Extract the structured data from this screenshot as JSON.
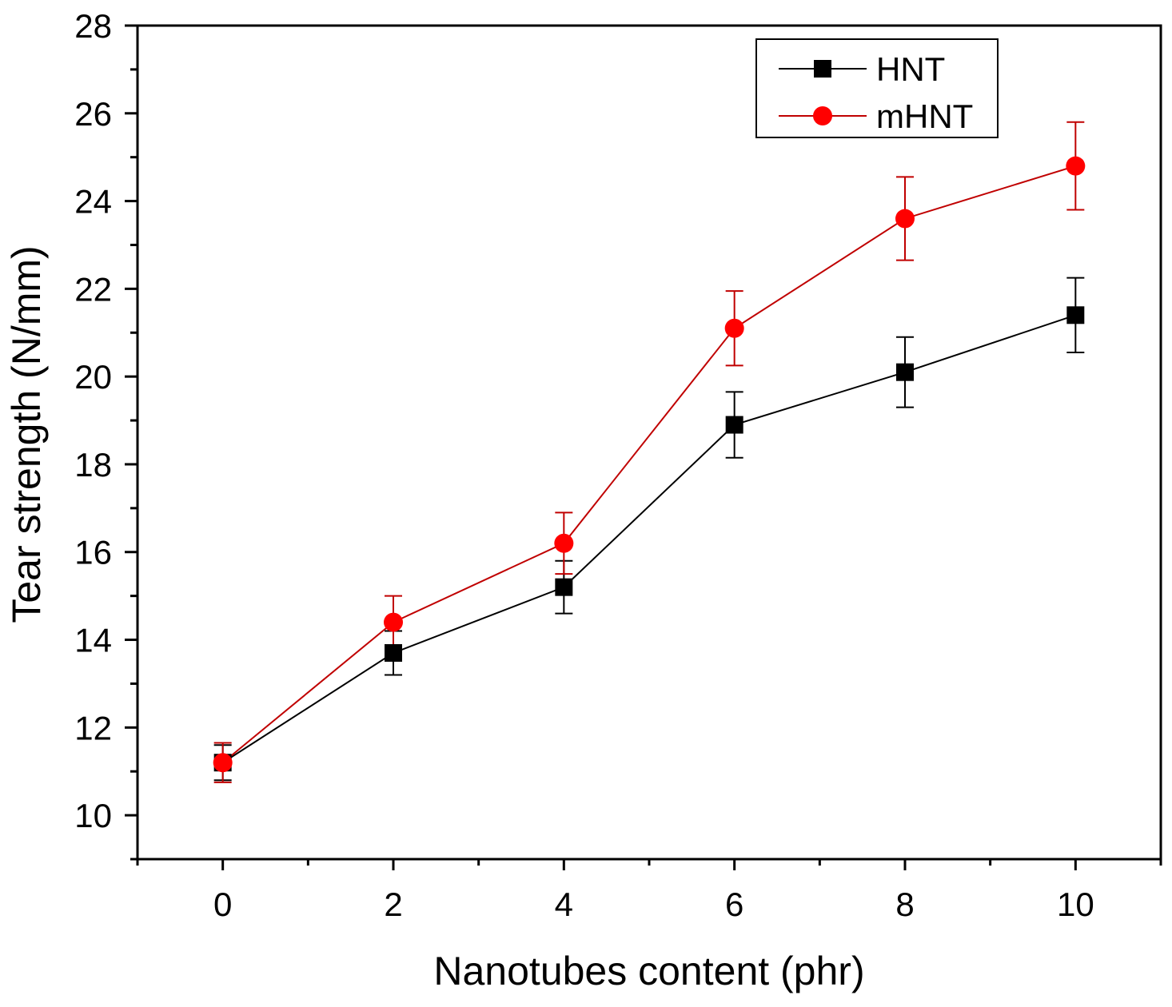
{
  "chart_data": {
    "type": "line",
    "title": "",
    "xlabel": "Nanotubes content (phr)",
    "ylabel": "Tear strength (N/mm)",
    "xlim": [
      -1,
      11
    ],
    "ylim": [
      9,
      28
    ],
    "xticks": [
      0,
      2,
      4,
      6,
      8,
      10
    ],
    "xtick_labels": [
      "0",
      "2",
      "4",
      "6",
      "8",
      "10"
    ],
    "yticks": [
      10,
      12,
      14,
      16,
      18,
      20,
      22,
      24,
      26,
      28
    ],
    "ytick_labels": [
      "10",
      "12",
      "14",
      "16",
      "18",
      "20",
      "22",
      "24",
      "26",
      "28"
    ],
    "grid": false,
    "legend_position": "top-right",
    "x": [
      0,
      2,
      4,
      6,
      8,
      10
    ],
    "series": [
      {
        "name": "HNT",
        "color": "#000000",
        "marker": "square",
        "values": [
          11.2,
          13.7,
          15.2,
          18.9,
          20.1,
          21.4
        ],
        "error": [
          0.4,
          0.5,
          0.6,
          0.75,
          0.8,
          0.85
        ]
      },
      {
        "name": "mHNT",
        "color": "#ff0000",
        "line_color": "#c00000",
        "marker": "circle",
        "values": [
          11.2,
          14.4,
          16.2,
          21.1,
          23.6,
          24.8
        ],
        "error": [
          0.45,
          0.6,
          0.7,
          0.85,
          0.95,
          1.0
        ]
      }
    ]
  }
}
